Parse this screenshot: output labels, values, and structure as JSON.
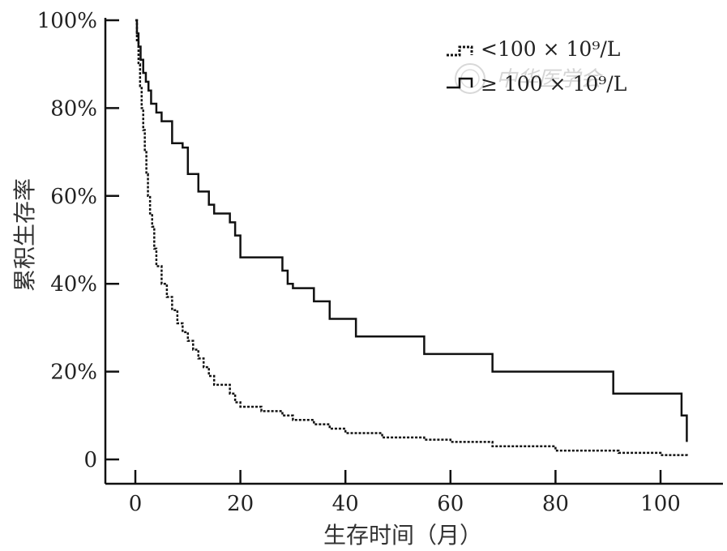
{
  "chart_data": {
    "type": "line",
    "step": true,
    "title": "",
    "xlabel": "生存时间（月）",
    "ylabel": "累积生存率",
    "xlim": [
      -5,
      111
    ],
    "ylim": [
      -5,
      101
    ],
    "xticks": [
      0,
      20,
      40,
      60,
      80,
      100
    ],
    "xtick_labels": [
      "0",
      "20",
      "40",
      "60",
      "80",
      "100"
    ],
    "yticks": [
      0,
      20,
      40,
      60,
      80,
      100
    ],
    "ytick_labels": [
      "0",
      "20%",
      "40%",
      "60%",
      "80%",
      "100%"
    ],
    "grid": false,
    "legend_position": "top-right",
    "series": [
      {
        "name": "<100 × 10⁹/L",
        "style": "dotted",
        "color": "#111111",
        "x": [
          0,
          0.3,
          0.6,
          0.9,
          1.2,
          1.5,
          1.8,
          2.1,
          2.4,
          2.8,
          3.2,
          3.6,
          4,
          5,
          6,
          7,
          8,
          9,
          10,
          11,
          12,
          13,
          14,
          15,
          18,
          19,
          20,
          24,
          28,
          30,
          34,
          37,
          40,
          47,
          55,
          60,
          68,
          80,
          92,
          100,
          105
        ],
        "y": [
          100,
          95,
          90,
          85,
          80,
          75,
          70,
          65,
          60,
          56,
          53,
          48,
          44,
          40,
          37,
          34,
          31,
          29,
          27,
          25,
          23,
          21,
          19,
          17,
          15,
          13,
          12,
          11,
          10,
          9,
          8,
          7,
          6,
          5,
          4.5,
          4,
          3,
          2,
          1.5,
          1,
          0.5
        ]
      },
      {
        "name": "≥ 100 × 10⁹/L",
        "style": "solid",
        "color": "#111111",
        "x": [
          0,
          0.3,
          0.6,
          1,
          1.5,
          2,
          2.5,
          3,
          4,
          5,
          7,
          9,
          10,
          12,
          14,
          15,
          18,
          19,
          20,
          24,
          28,
          29,
          30,
          34,
          37,
          42,
          47,
          55,
          60,
          68,
          80,
          91,
          100,
          104,
          105
        ],
        "y": [
          100,
          97,
          94,
          91,
          88,
          86,
          84,
          81,
          79,
          77,
          72,
          71,
          65,
          61,
          58,
          56,
          54,
          51,
          46,
          46,
          43,
          40,
          39,
          36,
          32,
          28,
          28,
          24,
          24,
          20,
          20,
          15,
          15,
          10,
          4
        ]
      }
    ],
    "legend": [
      {
        "label": "<100 × 10⁹/L",
        "style": "dotted"
      },
      {
        "label": "≥ 100 × 10⁹/L",
        "style": "solid"
      }
    ],
    "watermark": "中华医学会"
  }
}
